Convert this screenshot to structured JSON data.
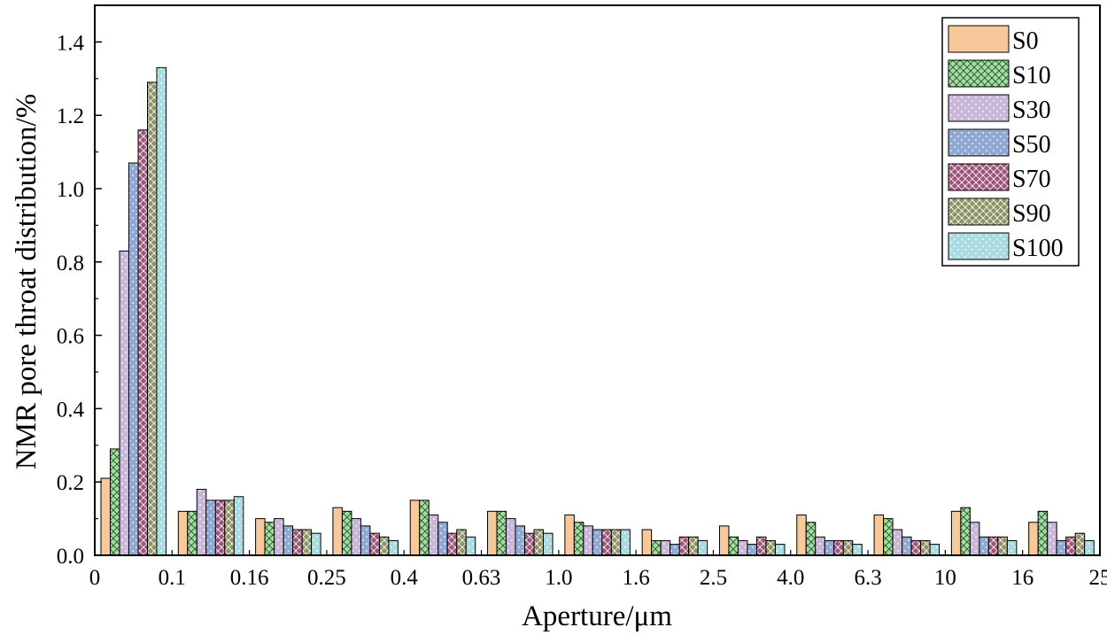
{
  "chart_data": {
    "type": "bar",
    "xlabel": "Aperture/μm",
    "ylabel": "NMR pore throat distribution/%",
    "ylim": [
      0,
      1.5
    ],
    "yticks": [
      "0.0",
      "0.2",
      "0.4",
      "0.6",
      "0.8",
      "1.0",
      "1.2",
      "1.4"
    ],
    "x_tick_labels": [
      "0",
      "0.1",
      "0.16",
      "0.25",
      "0.4",
      "0.63",
      "1.0",
      "1.6",
      "2.5",
      "4.0",
      "6.3",
      "10",
      "16",
      "25"
    ],
    "legend_position": "top-right",
    "series": [
      {
        "name": "S0",
        "color": "#f7c99a",
        "pattern": "none",
        "values": [
          0.21,
          0.12,
          0.1,
          0.13,
          0.15,
          0.12,
          0.11,
          0.07,
          0.08,
          0.11,
          0.11,
          0.12,
          0.09
        ]
      },
      {
        "name": "S10",
        "color": "#a8d9a8",
        "pattern": "crosshatch",
        "values": [
          0.29,
          0.12,
          0.09,
          0.12,
          0.15,
          0.12,
          0.09,
          0.04,
          0.05,
          0.09,
          0.1,
          0.13,
          0.12
        ]
      },
      {
        "name": "S30",
        "color": "#c9b6d9",
        "pattern": "dots",
        "values": [
          0.83,
          0.18,
          0.1,
          0.1,
          0.11,
          0.1,
          0.08,
          0.04,
          0.04,
          0.05,
          0.07,
          0.09,
          0.09
        ]
      },
      {
        "name": "S50",
        "color": "#8fa8d4",
        "pattern": "dots",
        "values": [
          1.07,
          0.15,
          0.08,
          0.08,
          0.09,
          0.08,
          0.07,
          0.03,
          0.03,
          0.04,
          0.05,
          0.05,
          0.04
        ]
      },
      {
        "name": "S70",
        "color": "#a0557a",
        "pattern": "weave",
        "values": [
          1.16,
          0.15,
          0.07,
          0.06,
          0.06,
          0.06,
          0.07,
          0.05,
          0.05,
          0.04,
          0.04,
          0.05,
          0.05
        ]
      },
      {
        "name": "S90",
        "color": "#8e9466",
        "pattern": "weave",
        "values": [
          1.29,
          0.15,
          0.07,
          0.05,
          0.07,
          0.07,
          0.07,
          0.05,
          0.04,
          0.04,
          0.04,
          0.05,
          0.06
        ]
      },
      {
        "name": "S100",
        "color": "#a9dbe0",
        "pattern": "dots",
        "values": [
          1.33,
          0.16,
          0.06,
          0.04,
          0.05,
          0.06,
          0.07,
          0.04,
          0.03,
          0.03,
          0.03,
          0.04,
          0.04
        ]
      }
    ]
  }
}
